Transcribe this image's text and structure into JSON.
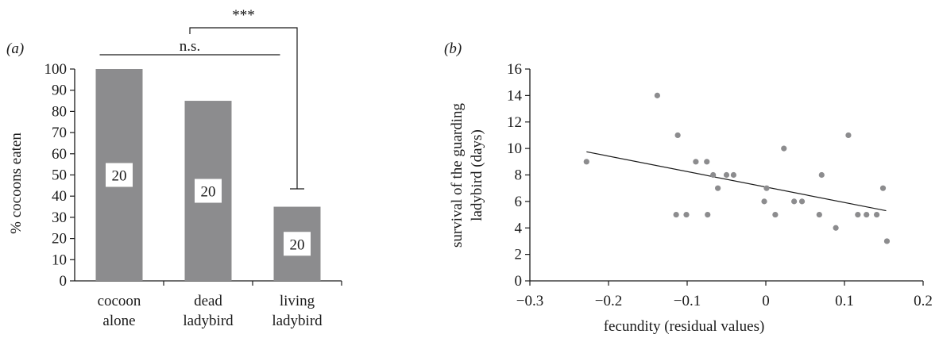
{
  "colors": {
    "bar": "#8c8c8e",
    "point": "#8c8c8e",
    "axis": "#1a1a1a",
    "count_box": "#ffffff"
  },
  "chart_data": [
    {
      "type": "bar",
      "panel": "(a)",
      "categories": [
        [
          "cocoon",
          "alone"
        ],
        [
          "dead",
          "ladybird"
        ],
        [
          "living",
          "ladybird"
        ]
      ],
      "values": [
        100,
        85,
        35
      ],
      "bar_labels": [
        "20",
        "20",
        "20"
      ],
      "xlabel": "",
      "ylabel": "% cocoons eaten",
      "ylim": [
        0,
        100
      ],
      "yticks": [
        0,
        10,
        20,
        30,
        40,
        50,
        60,
        70,
        80,
        90,
        100
      ],
      "grid": false,
      "annotations": [
        {
          "text": "n.s.",
          "from": 0,
          "to": 1
        },
        {
          "text": "***",
          "from": "0-1",
          "to": 2
        }
      ]
    },
    {
      "type": "scatter",
      "panel": "(b)",
      "xlabel": "fecundity (residual values)",
      "ylabel": [
        "survival of the guarding",
        "ladybird (days)"
      ],
      "xlim": [
        -0.3,
        0.2
      ],
      "ylim": [
        0,
        16
      ],
      "xticks": [
        -0.3,
        -0.2,
        -0.1,
        0,
        0.1,
        0.2
      ],
      "xtick_labels": [
        "−0.3",
        "−0.2",
        "−0.1",
        "0",
        "0.1",
        "0.2"
      ],
      "yticks": [
        0,
        2,
        4,
        6,
        8,
        10,
        12,
        14,
        16
      ],
      "grid": false,
      "points": [
        {
          "x": -0.228,
          "y": 9
        },
        {
          "x": -0.138,
          "y": 14
        },
        {
          "x": -0.112,
          "y": 11
        },
        {
          "x": -0.114,
          "y": 5
        },
        {
          "x": -0.101,
          "y": 5
        },
        {
          "x": -0.089,
          "y": 9
        },
        {
          "x": -0.075,
          "y": 9
        },
        {
          "x": -0.067,
          "y": 8
        },
        {
          "x": -0.061,
          "y": 7
        },
        {
          "x": -0.074,
          "y": 5
        },
        {
          "x": -0.05,
          "y": 8
        },
        {
          "x": -0.041,
          "y": 8
        },
        {
          "x": -0.002,
          "y": 6
        },
        {
          "x": 0.001,
          "y": 7
        },
        {
          "x": 0.012,
          "y": 5
        },
        {
          "x": 0.023,
          "y": 10
        },
        {
          "x": 0.036,
          "y": 6
        },
        {
          "x": 0.046,
          "y": 6
        },
        {
          "x": 0.068,
          "y": 5
        },
        {
          "x": 0.071,
          "y": 8
        },
        {
          "x": 0.089,
          "y": 4
        },
        {
          "x": 0.105,
          "y": 11
        },
        {
          "x": 0.117,
          "y": 5
        },
        {
          "x": 0.128,
          "y": 5
        },
        {
          "x": 0.141,
          "y": 5
        },
        {
          "x": 0.149,
          "y": 7
        },
        {
          "x": 0.154,
          "y": 3
        }
      ],
      "trendline": {
        "x": [
          -0.228,
          0.153
        ],
        "y": [
          9.75,
          5.3
        ]
      }
    }
  ]
}
